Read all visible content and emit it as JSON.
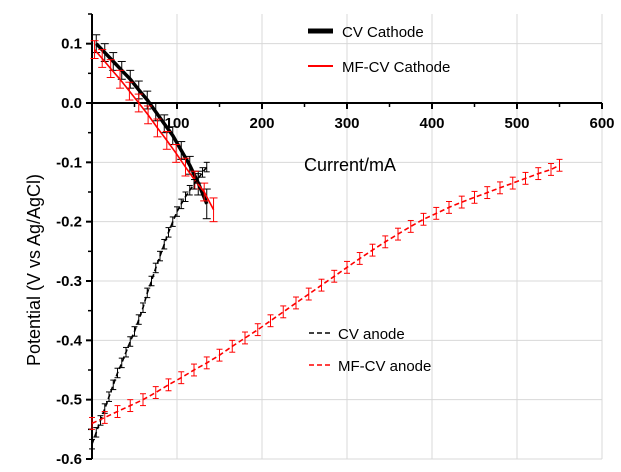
{
  "chart_data": {
    "type": "line",
    "title": "",
    "xlabel": "Current/mA",
    "ylabel": "Potential (V vs Ag/AgCl)",
    "xlim": [
      0,
      600
    ],
    "ylim": [
      -0.6,
      0.15
    ],
    "x_ticks": [
      100,
      200,
      300,
      400,
      500,
      600
    ],
    "x_tick_labels": [
      "100",
      "200",
      "300",
      "400",
      "500",
      "600"
    ],
    "y_ticks": [
      0.1,
      0.0,
      -0.1,
      -0.2,
      -0.3,
      -0.4,
      -0.5,
      -0.6
    ],
    "y_tick_labels": [
      "0.1",
      "0.0",
      "-0.1",
      "-0.2",
      "-0.3",
      "-0.4",
      "-0.5",
      "-0.6"
    ],
    "grid": true,
    "x_axis_crosses_at_y": 0,
    "legends": [
      {
        "placement": "top-center",
        "entries": [
          "CV Cathode",
          "MF-CV Cathode"
        ]
      },
      {
        "placement": "bottom-center",
        "entries": [
          "CV anode",
          "MF-CV anode"
        ]
      }
    ],
    "series": [
      {
        "name": "CV Cathode",
        "color": "#000000",
        "style": "solid",
        "errorbars": true,
        "x": [
          5,
          15,
          25,
          35,
          45,
          55,
          65,
          75,
          85,
          95,
          105,
          115,
          125,
          135
        ],
        "y": [
          0.1,
          0.085,
          0.07,
          0.055,
          0.04,
          0.022,
          0.005,
          -0.015,
          -0.035,
          -0.055,
          -0.08,
          -0.105,
          -0.135,
          -0.17
        ],
        "err": [
          0.015,
          0.015,
          0.015,
          0.015,
          0.015,
          0.015,
          0.015,
          0.015,
          0.015,
          0.015,
          0.015,
          0.015,
          0.02,
          0.025
        ]
      },
      {
        "name": "MF-CV Cathode",
        "color": "#ff0000",
        "style": "solid",
        "errorbars": true,
        "x": [
          3,
          12,
          22,
          33,
          44,
          55,
          66,
          77,
          88,
          99,
          110,
          121,
          132,
          143
        ],
        "y": [
          0.09,
          0.075,
          0.058,
          0.04,
          0.02,
          0.0,
          -0.02,
          -0.042,
          -0.063,
          -0.085,
          -0.108,
          -0.13,
          -0.15,
          -0.18
        ],
        "err": [
          0.015,
          0.015,
          0.015,
          0.015,
          0.015,
          0.015,
          0.015,
          0.015,
          0.015,
          0.015,
          0.015,
          0.015,
          0.015,
          0.02
        ]
      },
      {
        "name": "CV anode",
        "color": "#000000",
        "style": "dashed",
        "errorbars": true,
        "x": [
          0,
          5,
          10,
          15,
          20,
          25,
          30,
          35,
          40,
          45,
          50,
          55,
          60,
          65,
          70,
          75,
          80,
          85,
          90,
          95,
          100,
          105,
          110,
          115,
          120,
          125,
          130,
          135
        ],
        "y": [
          -0.575,
          -0.555,
          -0.535,
          -0.515,
          -0.495,
          -0.475,
          -0.455,
          -0.438,
          -0.42,
          -0.402,
          -0.385,
          -0.365,
          -0.345,
          -0.32,
          -0.3,
          -0.278,
          -0.258,
          -0.238,
          -0.218,
          -0.2,
          -0.183,
          -0.17,
          -0.158,
          -0.147,
          -0.137,
          -0.127,
          -0.117,
          -0.108
        ],
        "err": [
          0.008,
          0.008,
          0.008,
          0.008,
          0.008,
          0.008,
          0.008,
          0.008,
          0.008,
          0.008,
          0.008,
          0.008,
          0.008,
          0.008,
          0.008,
          0.008,
          0.008,
          0.008,
          0.008,
          0.008,
          0.008,
          0.008,
          0.008,
          0.008,
          0.008,
          0.008,
          0.008,
          0.008
        ]
      },
      {
        "name": "MF-CV anode",
        "color": "#ff0000",
        "style": "dashed",
        "errorbars": true,
        "x": [
          0,
          15,
          30,
          45,
          60,
          75,
          90,
          105,
          120,
          135,
          150,
          165,
          180,
          195,
          210,
          225,
          240,
          255,
          270,
          285,
          300,
          315,
          330,
          345,
          360,
          375,
          390,
          405,
          420,
          435,
          450,
          465,
          480,
          495,
          510,
          525,
          540,
          550
        ],
        "y": [
          -0.54,
          -0.53,
          -0.52,
          -0.51,
          -0.5,
          -0.488,
          -0.475,
          -0.463,
          -0.45,
          -0.438,
          -0.425,
          -0.41,
          -0.396,
          -0.382,
          -0.367,
          -0.352,
          -0.337,
          -0.322,
          -0.307,
          -0.292,
          -0.277,
          -0.262,
          -0.248,
          -0.234,
          -0.221,
          -0.208,
          -0.196,
          -0.186,
          -0.176,
          -0.167,
          -0.159,
          -0.151,
          -0.143,
          -0.135,
          -0.127,
          -0.119,
          -0.112,
          -0.105
        ],
        "err": [
          0.01,
          0.01,
          0.01,
          0.01,
          0.01,
          0.01,
          0.01,
          0.01,
          0.01,
          0.01,
          0.01,
          0.01,
          0.01,
          0.01,
          0.01,
          0.01,
          0.01,
          0.01,
          0.01,
          0.01,
          0.01,
          0.01,
          0.01,
          0.01,
          0.01,
          0.01,
          0.01,
          0.01,
          0.01,
          0.01,
          0.01,
          0.01,
          0.01,
          0.01,
          0.01,
          0.01,
          0.01,
          0.01
        ]
      }
    ]
  }
}
